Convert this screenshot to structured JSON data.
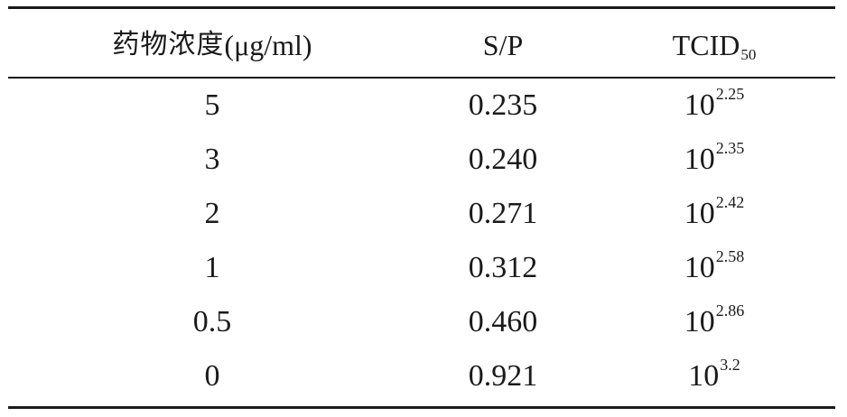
{
  "header": {
    "col_drug": "药物浓度",
    "col_drug_unit": "(μg/ml)",
    "col_sp": "S/P",
    "col_tcid": "TCID",
    "col_tcid_sub": "50"
  },
  "rows": [
    {
      "conc": "5",
      "sp": "0.235",
      "base": "10",
      "exp": "2.25"
    },
    {
      "conc": "3",
      "sp": "0.240",
      "base": "10",
      "exp": "2.35"
    },
    {
      "conc": "2",
      "sp": "0.271",
      "base": "10",
      "exp": "2.42"
    },
    {
      "conc": "1",
      "sp": "0.312",
      "base": "10",
      "exp": "2.58"
    },
    {
      "conc": "0.5",
      "sp": "0.460",
      "base": "10",
      "exp": "2.86"
    },
    {
      "conc": "0",
      "sp": "0.921",
      "base": "10",
      "exp": "3.2"
    }
  ]
}
